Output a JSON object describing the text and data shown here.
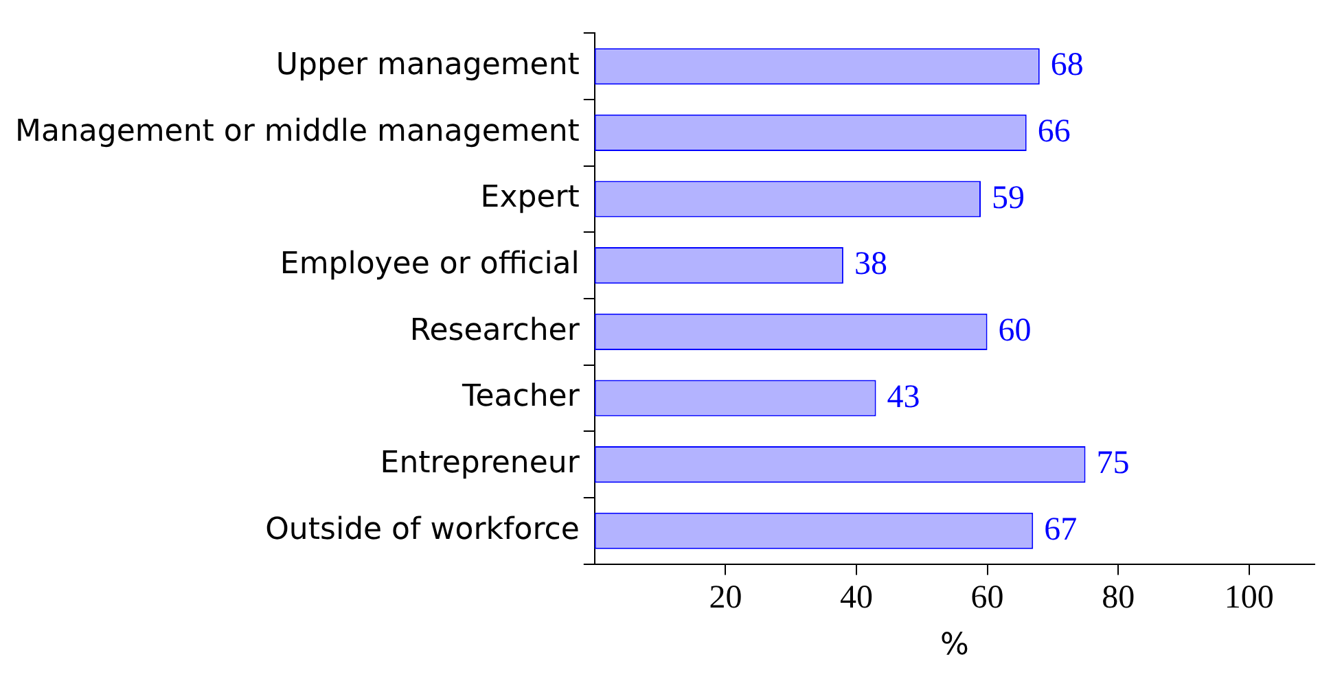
{
  "chart_data": {
    "type": "bar",
    "orientation": "horizontal",
    "xlabel": "%",
    "categories": [
      "Upper management",
      "Management or middle management",
      "Expert",
      "Employee or official",
      "Researcher",
      "Teacher",
      "Entrepreneur",
      "Outside of workforce"
    ],
    "series": [
      {
        "color": "#b3b3ff",
        "values": [
          68,
          66,
          59,
          38,
          60,
          43,
          75,
          67
        ]
      }
    ],
    "xlim": [
      0,
      110
    ],
    "xticks": [
      20,
      40,
      60,
      80,
      100
    ],
    "data_labels": true,
    "grid": false,
    "legend": false
  }
}
